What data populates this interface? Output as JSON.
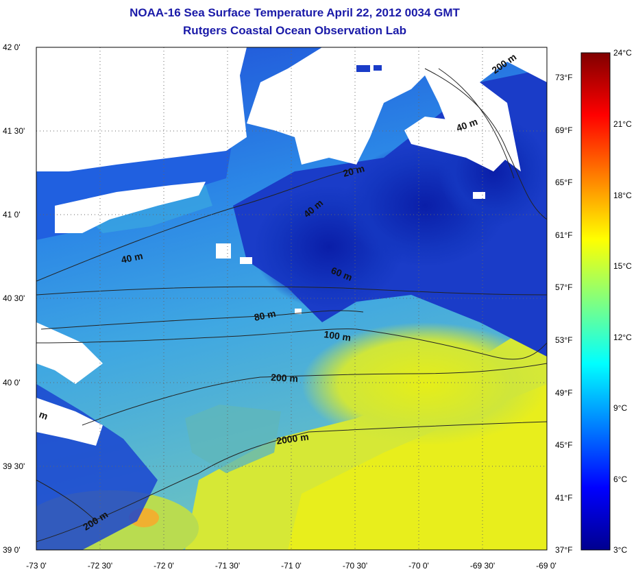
{
  "header": {
    "title": "NOAA-16 Sea Surface Temperature April 22, 2012 0034 GMT",
    "subtitle": "Rutgers Coastal Ocean Observation Lab"
  },
  "axes": {
    "x_ticks": [
      "-73 0'",
      "-72 30'",
      "-72 0'",
      "-71 30'",
      "-71 0'",
      "-70 30'",
      "-70 0'",
      "-69 30'",
      "-69 0'"
    ],
    "y_ticks": [
      "42 0'",
      "41 30'",
      "41 0'",
      "40 30'",
      "40 0'",
      "39 30'",
      "39 0'"
    ],
    "fahrenheit_ticks": [
      "73°F",
      "69°F",
      "65°F",
      "61°F",
      "57°F",
      "53°F",
      "49°F",
      "45°F",
      "41°F",
      "37°F"
    ]
  },
  "colorbar": {
    "labels": [
      "24°C",
      "21°C",
      "18°C",
      "15°C",
      "12°C",
      "9°C",
      "6°C",
      "3°C"
    ],
    "colors": [
      "#00008f",
      "#0000ff",
      "#0080ff",
      "#00ffff",
      "#80ff80",
      "#ffff00",
      "#ff8000",
      "#ff0000",
      "#800000"
    ]
  },
  "contour_labels": [
    "200 m",
    "40 m",
    "20 m",
    "40 m",
    "40 m",
    "60 m",
    "80 m",
    "100 m",
    "200 m",
    "2000 m",
    "200 m",
    "m"
  ],
  "colors": {
    "title": "#1a1aa8",
    "land": "#ffffff",
    "cold_water": "#1030b0",
    "mid_water": "#2a8ee8",
    "warm_water": "#e8ee20"
  }
}
